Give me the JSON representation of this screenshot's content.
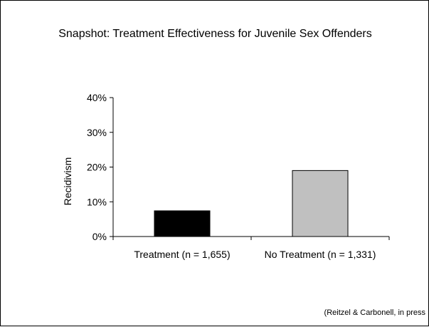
{
  "chart_data": {
    "type": "bar",
    "title": "Snapshot: Treatment Effectiveness for Juvenile Sex Offenders",
    "source": "(Reitzel & Carbonell, in press",
    "categories": [
      "Treatment (n = 1,655)",
      "No Treatment (n = 1,331)"
    ],
    "values": [
      7.4,
      19.0
    ],
    "colors": [
      "#000000",
      "#c0c0c0"
    ],
    "xlabel": "",
    "ylabel": "Recidivism",
    "ylim": [
      0,
      40
    ],
    "yticks": [
      0,
      10,
      20,
      30,
      40
    ],
    "ytick_labels": [
      "0%",
      "10%",
      "20%",
      "30%",
      "40%"
    ],
    "grid": false,
    "legend": "none"
  }
}
